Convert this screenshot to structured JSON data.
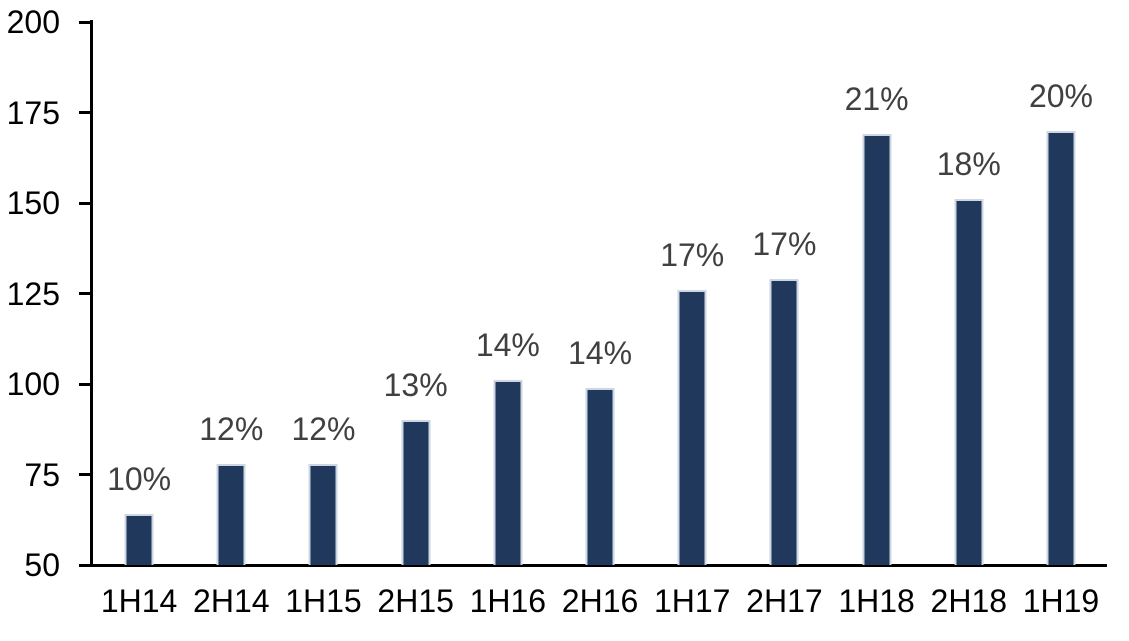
{
  "chart_data": {
    "type": "bar",
    "title": "",
    "xlabel": "",
    "ylabel": "",
    "categories": [
      "1H14",
      "2H14",
      "1H15",
      "2H15",
      "1H16",
      "2H16",
      "1H17",
      "2H17",
      "1H18",
      "2H18",
      "1H19"
    ],
    "values": [
      64,
      78,
      78,
      90,
      101,
      99,
      126,
      129,
      169,
      151,
      170
    ],
    "bar_labels": [
      "10%",
      "12%",
      "12%",
      "13%",
      "14%",
      "14%",
      "17%",
      "17%",
      "21%",
      "18%",
      "20%"
    ],
    "ylim": [
      50,
      200
    ],
    "yticks": [
      50,
      75,
      100,
      125,
      150,
      175,
      200
    ],
    "grid": false,
    "legend_position": "none",
    "colors": {
      "bar_fill": "#20385C",
      "bar_border": "#CDD7E3",
      "axis_line": "#000000",
      "tick_label": "#000000",
      "value_label": "#404040",
      "background": "#FFFFFF"
    }
  }
}
